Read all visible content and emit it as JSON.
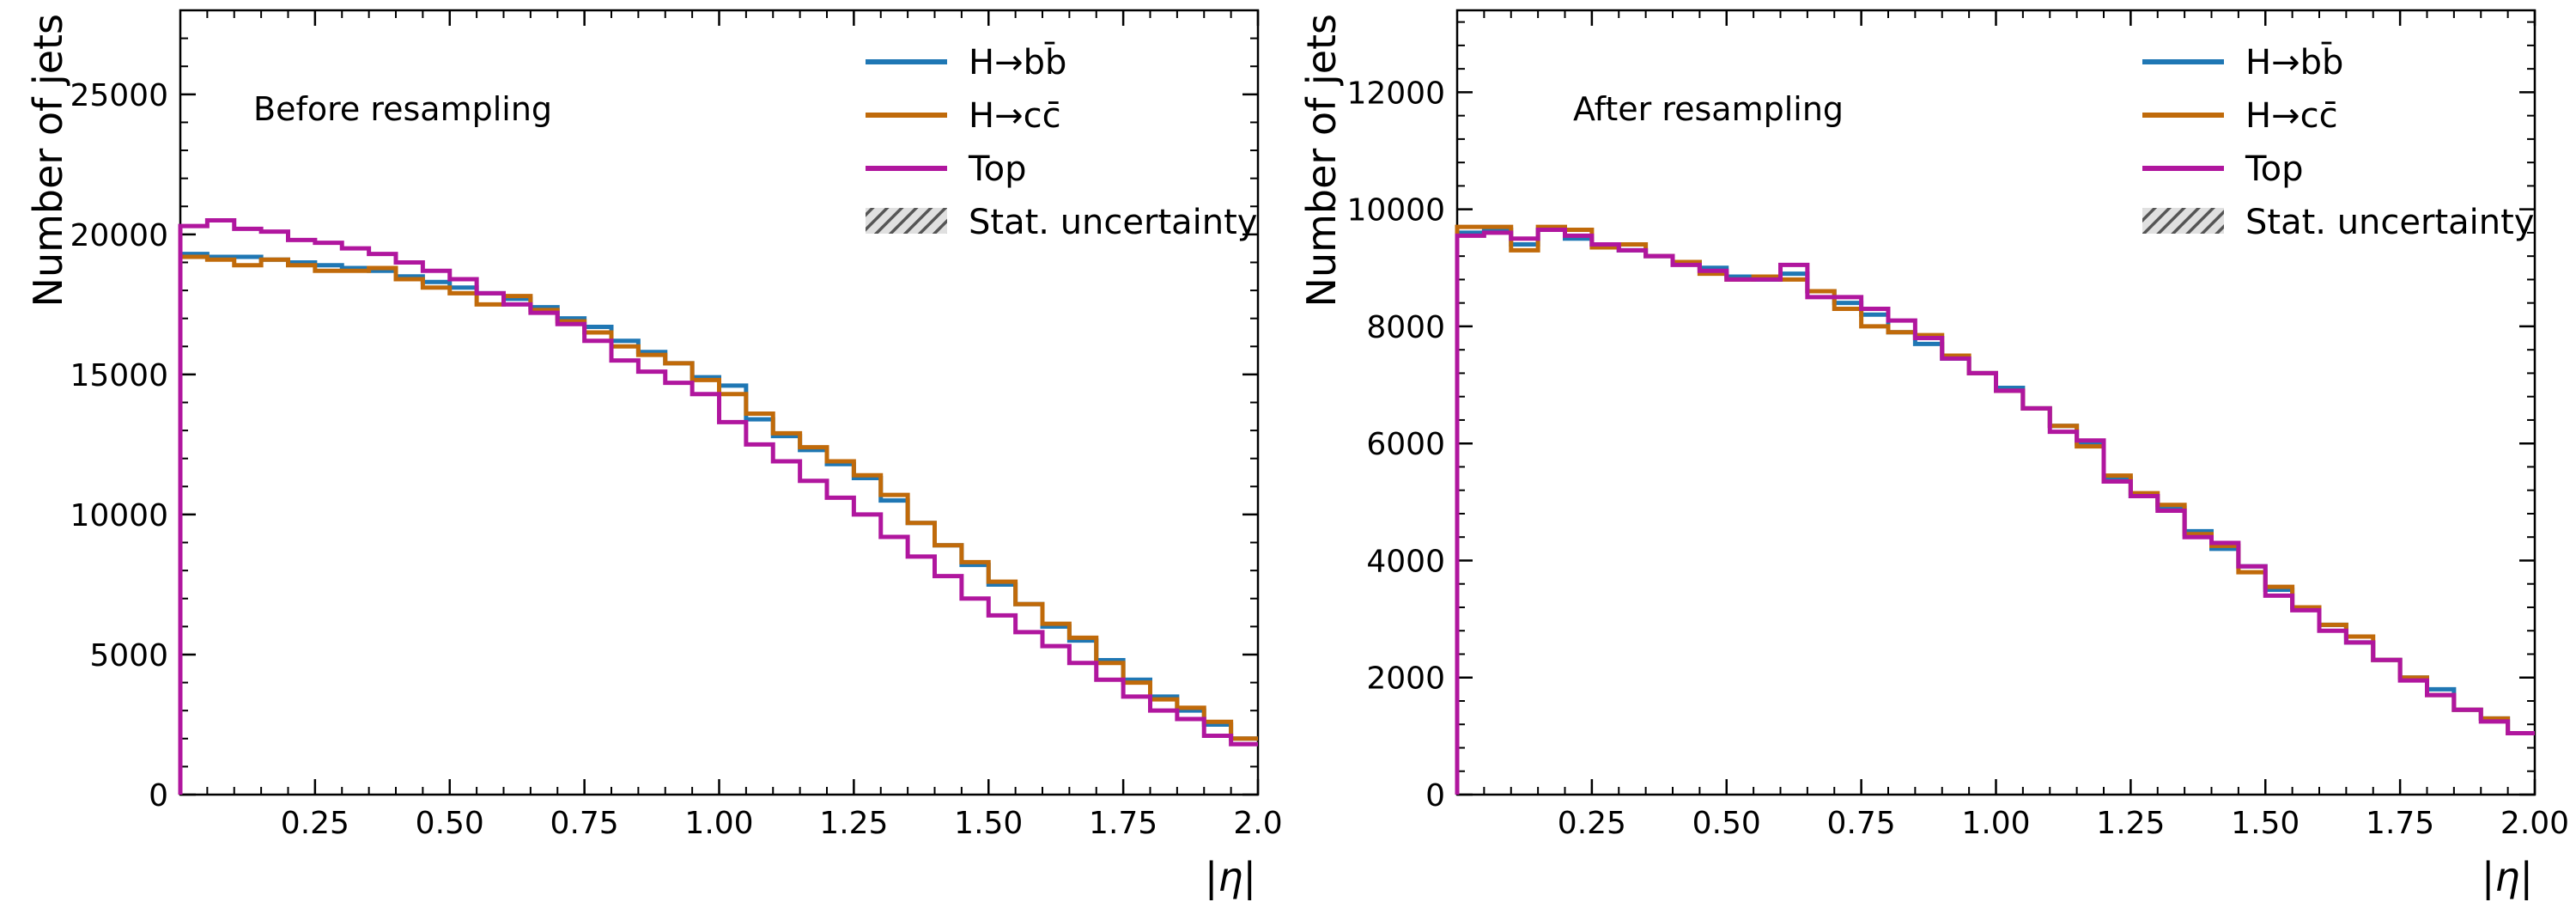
{
  "chart_data": [
    {
      "type": "histogram-step",
      "annotation": "Before resampling",
      "xlabel": "|η|",
      "ylabel": "Number of jets",
      "xlim": [
        0,
        2.0
      ],
      "ylim": [
        0,
        28000
      ],
      "xticks": [
        "0.25",
        "0.50",
        "0.75",
        "1.00",
        "1.25",
        "1.50",
        "1.75",
        "2.0"
      ],
      "yticks": [
        "0",
        "5000",
        "10000",
        "15000",
        "20000",
        "25000"
      ],
      "bin_edges": [
        0,
        0.05,
        0.1,
        0.15,
        0.2,
        0.25,
        0.3,
        0.35,
        0.4,
        0.45,
        0.5,
        0.55,
        0.6,
        0.65,
        0.7,
        0.75,
        0.8,
        0.85,
        0.9,
        0.95,
        1.0,
        1.05,
        1.1,
        1.15,
        1.2,
        1.25,
        1.3,
        1.35,
        1.4,
        1.45,
        1.5,
        1.55,
        1.6,
        1.65,
        1.7,
        1.75,
        1.8,
        1.85,
        1.9,
        1.95,
        2.0
      ],
      "legend": [
        "H→bb̄",
        "H→cc̄",
        "Top",
        "Stat. uncertainty"
      ],
      "legend_position": "top-right",
      "series": [
        {
          "name": "H→bb̄",
          "color": "#1f77b4",
          "values": [
            19300,
            19200,
            19200,
            19100,
            19000,
            18900,
            18800,
            18700,
            18500,
            18300,
            18100,
            17900,
            17700,
            17400,
            17000,
            16700,
            16200,
            15800,
            15400,
            14900,
            14600,
            13400,
            12800,
            12300,
            11800,
            11300,
            10500,
            9700,
            8900,
            8200,
            7500,
            6800,
            6000,
            5500,
            4800,
            4100,
            3500,
            3000,
            2500,
            2000
          ]
        },
        {
          "name": "H→cc̄",
          "color": "#c06a0a",
          "values": [
            19200,
            19100,
            18900,
            19100,
            18900,
            18700,
            18700,
            18800,
            18400,
            18100,
            17900,
            17500,
            17800,
            17300,
            16900,
            16500,
            16000,
            15700,
            15400,
            14800,
            14300,
            13600,
            12900,
            12400,
            11900,
            11400,
            10700,
            9700,
            8900,
            8300,
            7600,
            6800,
            6100,
            5600,
            4700,
            4000,
            3400,
            3100,
            2600,
            2000
          ]
        },
        {
          "name": "Top",
          "color": "#b0169e",
          "values": [
            20300,
            20500,
            20200,
            20100,
            19800,
            19700,
            19500,
            19300,
            19000,
            18700,
            18400,
            17900,
            17500,
            17200,
            16800,
            16200,
            15500,
            15100,
            14700,
            14300,
            13300,
            12500,
            11900,
            11200,
            10600,
            10000,
            9200,
            8500,
            7800,
            7000,
            6400,
            5800,
            5300,
            4700,
            4100,
            3500,
            3000,
            2700,
            2100,
            1800
          ]
        }
      ]
    },
    {
      "type": "histogram-step",
      "annotation": "After resampling",
      "xlabel": "|η|",
      "ylabel": "Number of jets",
      "xlim": [
        0,
        2.0
      ],
      "ylim": [
        0,
        13400
      ],
      "xticks": [
        "0.25",
        "0.50",
        "0.75",
        "1.00",
        "1.25",
        "1.50",
        "1.75",
        "2.00"
      ],
      "yticks": [
        "0",
        "2000",
        "4000",
        "6000",
        "8000",
        "10000",
        "12000"
      ],
      "bin_edges": [
        0,
        0.05,
        0.1,
        0.15,
        0.2,
        0.25,
        0.3,
        0.35,
        0.4,
        0.45,
        0.5,
        0.55,
        0.6,
        0.65,
        0.7,
        0.75,
        0.8,
        0.85,
        0.9,
        0.95,
        1.0,
        1.05,
        1.1,
        1.15,
        1.2,
        1.25,
        1.3,
        1.35,
        1.4,
        1.45,
        1.5,
        1.55,
        1.6,
        1.65,
        1.7,
        1.75,
        1.8,
        1.85,
        1.9,
        1.95,
        2.0
      ],
      "legend": [
        "H→bb̄",
        "H→cc̄",
        "Top",
        "Stat. uncertainty"
      ],
      "legend_position": "top-right",
      "series": [
        {
          "name": "H→bb̄",
          "color": "#1f77b4",
          "values": [
            9600,
            9650,
            9400,
            9650,
            9500,
            9400,
            9300,
            9200,
            9100,
            9000,
            8850,
            8800,
            8900,
            8600,
            8400,
            8200,
            7900,
            7700,
            7450,
            7200,
            6950,
            6600,
            6300,
            6000,
            5400,
            5100,
            4900,
            4500,
            4200,
            3900,
            3500,
            3200,
            2900,
            2600,
            2300,
            2000,
            1800,
            1450,
            1300,
            1050
          ]
        },
        {
          "name": "H→cc̄",
          "color": "#c06a0a",
          "values": [
            9700,
            9700,
            9300,
            9700,
            9650,
            9350,
            9400,
            9200,
            9100,
            8900,
            8800,
            8850,
            8800,
            8600,
            8300,
            8000,
            7900,
            7850,
            7500,
            7200,
            6900,
            6600,
            6300,
            5950,
            5450,
            5150,
            4950,
            4450,
            4250,
            3800,
            3550,
            3200,
            2900,
            2700,
            2300,
            2000,
            1700,
            1450,
            1300,
            1050
          ]
        },
        {
          "name": "Top",
          "color": "#b0169e",
          "values": [
            9550,
            9600,
            9500,
            9650,
            9550,
            9400,
            9300,
            9200,
            9050,
            8950,
            8800,
            8800,
            9050,
            8500,
            8500,
            8300,
            8100,
            7800,
            7450,
            7200,
            6900,
            6600,
            6200,
            6050,
            5350,
            5100,
            4850,
            4400,
            4300,
            3900,
            3400,
            3150,
            2800,
            2600,
            2300,
            1950,
            1700,
            1450,
            1250,
            1050
          ]
        }
      ]
    }
  ]
}
